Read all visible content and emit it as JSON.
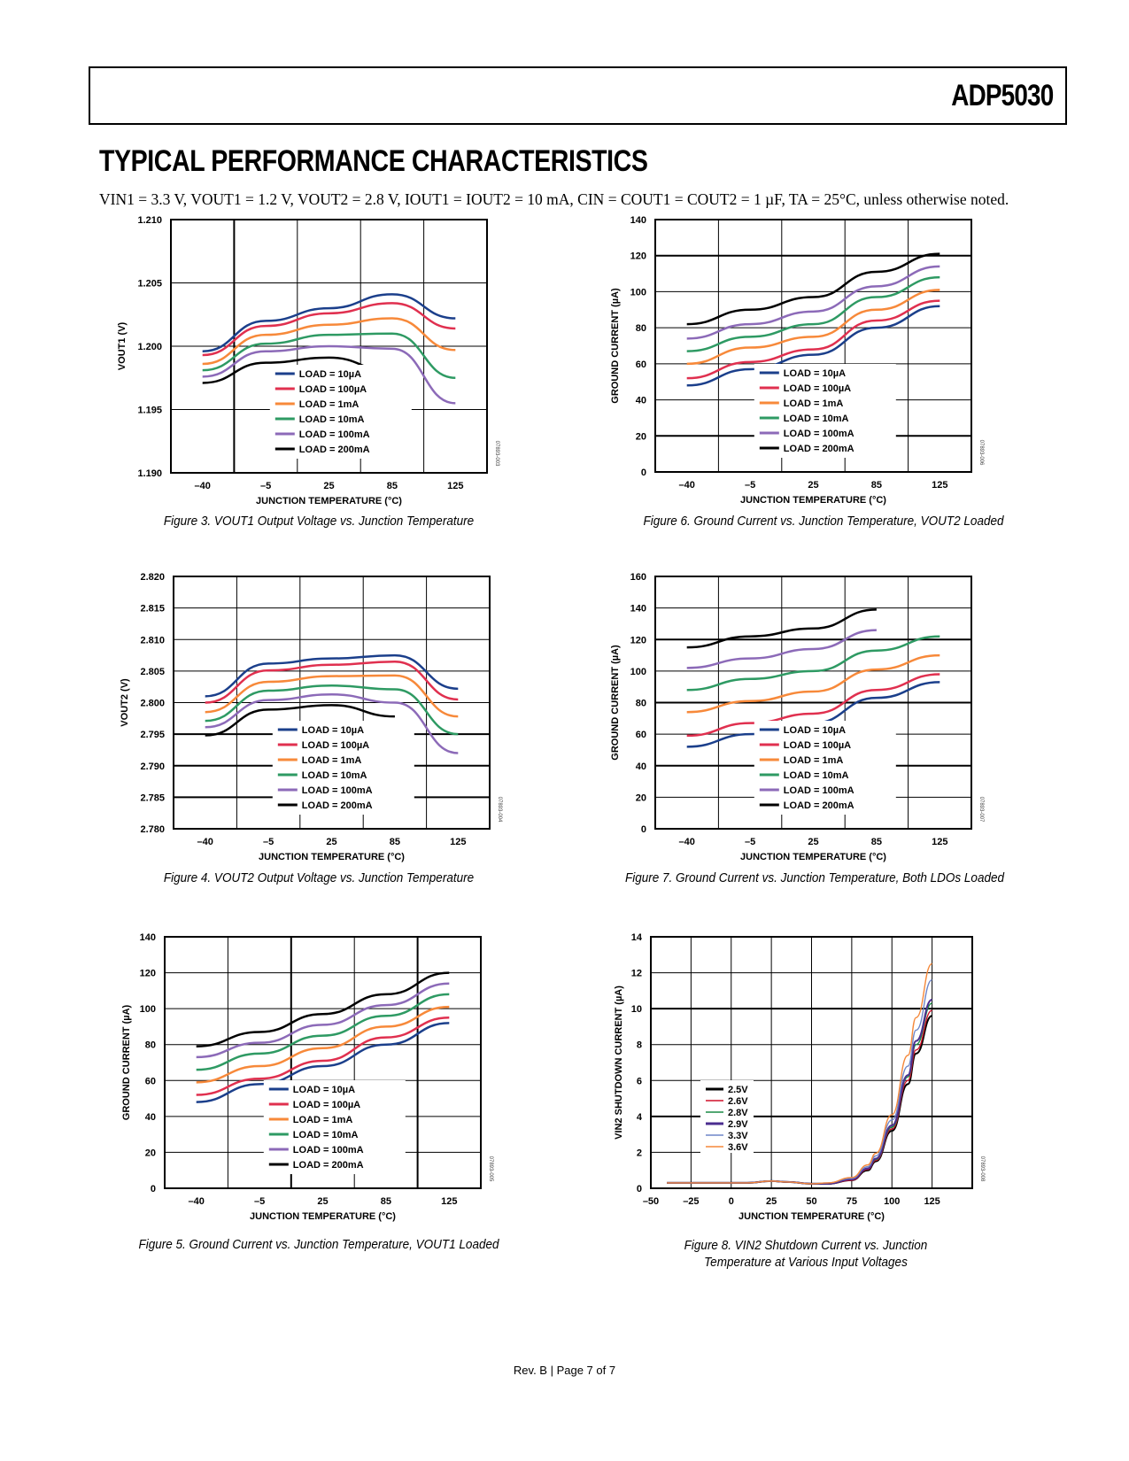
{
  "header": {
    "part_number": "ADP5030"
  },
  "section_title": "TYPICAL PERFORMANCE CHARACTERISTICS",
  "conditions": "VIN1 = 3.3 V, VOUT1 = 1.2 V, VOUT2 = 2.8 V, IOUT1 = IOUT2 = 10 mA, CIN = COUT1 = COUT2 = 1 µF, TA = 25°C, unless otherwise noted.",
  "footer": "Rev. B | Page 7 of 7",
  "chart_data": [
    {
      "id": "fig3",
      "type": "line",
      "caption": "Figure 3. VOUT1 Output Voltage vs. Junction Temperature",
      "xlabel": "JUNCTION TEMPERATURE (°C)",
      "ylabel": "VOUT1 (V)",
      "x_ticks": [
        "–40",
        "–5",
        "25",
        "85",
        "125"
      ],
      "y_ticks": [
        "1.190",
        "1.195",
        "1.200",
        "1.205",
        "1.210"
      ],
      "ylim": [
        1.19,
        1.21
      ],
      "grid": true,
      "legend": "bottom-center",
      "side_id": "07893-003",
      "x": [
        -40,
        -5,
        25,
        85,
        125
      ],
      "series": [
        {
          "name": "LOAD = 10µA",
          "color": "#1b3f8b",
          "values": [
            1.1996,
            1.202,
            1.203,
            1.2041,
            1.2022
          ]
        },
        {
          "name": "LOAD = 100µA",
          "color": "#e0304f",
          "values": [
            1.1993,
            1.2016,
            1.2026,
            1.2034,
            1.2014
          ]
        },
        {
          "name": "LOAD = 1mA",
          "color": "#f7893a",
          "values": [
            1.1986,
            1.2009,
            1.2017,
            1.2022,
            1.1997
          ]
        },
        {
          "name": "LOAD = 10mA",
          "color": "#2e9a63",
          "values": [
            1.1981,
            1.2002,
            1.2009,
            1.201,
            1.1975
          ]
        },
        {
          "name": "LOAD = 100mA",
          "color": "#8c6ab8",
          "values": [
            1.1976,
            1.1996,
            1.2,
            1.1998,
            1.1955
          ]
        },
        {
          "name": "LOAD = 200mA",
          "color": "#000000",
          "values": [
            1.1971,
            1.1987,
            1.1991,
            1.198,
            null
          ]
        }
      ]
    },
    {
      "id": "fig6",
      "type": "line",
      "caption": "Figure 6. Ground Current vs. Junction Temperature, VOUT2 Loaded",
      "xlabel": "JUNCTION TEMPERATURE (°C)",
      "ylabel": "GROUND CURRENT (µA)",
      "x_ticks": [
        "–40",
        "–5",
        "25",
        "85",
        "125"
      ],
      "y_ticks": [
        "0",
        "20",
        "40",
        "60",
        "80",
        "100",
        "120",
        "140"
      ],
      "ylim": [
        0,
        140
      ],
      "grid": true,
      "legend": "bottom-center",
      "side_id": "07893-006",
      "x": [
        -40,
        -5,
        25,
        85,
        125
      ],
      "series": [
        {
          "name": "LOAD = 10µA",
          "color": "#1b3f8b",
          "values": [
            48,
            57,
            65,
            80,
            92
          ]
        },
        {
          "name": "LOAD = 100µA",
          "color": "#e0304f",
          "values": [
            52,
            61,
            68,
            84,
            95
          ]
        },
        {
          "name": "LOAD = 1mA",
          "color": "#f7893a",
          "values": [
            60,
            69,
            75,
            90,
            101
          ]
        },
        {
          "name": "LOAD = 10mA",
          "color": "#2e9a63",
          "values": [
            67,
            75,
            82,
            97,
            108
          ]
        },
        {
          "name": "LOAD = 100mA",
          "color": "#8c6ab8",
          "values": [
            74,
            82,
            89,
            103,
            114
          ]
        },
        {
          "name": "LOAD = 200mA",
          "color": "#000000",
          "values": [
            82,
            90,
            97,
            111,
            121
          ]
        }
      ]
    },
    {
      "id": "fig4",
      "type": "line",
      "caption": "Figure 4. VOUT2 Output Voltage vs. Junction Temperature",
      "xlabel": "JUNCTION TEMPERATURE (°C)",
      "ylabel": "VOUT2 (V)",
      "x_ticks": [
        "–40",
        "–5",
        "25",
        "85",
        "125"
      ],
      "y_ticks": [
        "2.780",
        "2.785",
        "2.790",
        "2.795",
        "2.800",
        "2.805",
        "2.810",
        "2.815",
        "2.820"
      ],
      "ylim": [
        2.78,
        2.82
      ],
      "grid": true,
      "legend": "bottom-center",
      "side_id": "07893-004",
      "x": [
        -40,
        -5,
        25,
        85,
        125
      ],
      "series": [
        {
          "name": "LOAD = 10µA",
          "color": "#1b3f8b",
          "values": [
            2.801,
            2.8062,
            2.807,
            2.8075,
            2.8022
          ]
        },
        {
          "name": "LOAD = 100µA",
          "color": "#e0304f",
          "values": [
            2.8,
            2.8051,
            2.806,
            2.8065,
            2.8005
          ]
        },
        {
          "name": "LOAD = 1mA",
          "color": "#f7893a",
          "values": [
            2.7985,
            2.8033,
            2.8042,
            2.8043,
            2.7978
          ]
        },
        {
          "name": "LOAD = 10mA",
          "color": "#2e9a63",
          "values": [
            2.7971,
            2.8019,
            2.8027,
            2.8021,
            2.795
          ]
        },
        {
          "name": "LOAD = 100mA",
          "color": "#8c6ab8",
          "values": [
            2.7961,
            2.8004,
            2.8013,
            2.8,
            2.792
          ]
        },
        {
          "name": "LOAD = 200mA",
          "color": "#000000",
          "values": [
            2.7948,
            2.7989,
            2.7996,
            2.7978,
            null
          ]
        }
      ]
    },
    {
      "id": "fig7",
      "type": "line",
      "caption": "Figure 7. Ground Current vs. Junction Temperature, Both LDOs Loaded",
      "xlabel": "JUNCTION TEMPERATURE (°C)",
      "ylabel": "GROUND CURRENT (µA)",
      "x_ticks": [
        "–40",
        "–5",
        "25",
        "85",
        "125"
      ],
      "y_ticks": [
        "0",
        "20",
        "40",
        "60",
        "80",
        "100",
        "120",
        "140",
        "160"
      ],
      "ylim": [
        0,
        160
      ],
      "grid": true,
      "legend": "bottom-center",
      "side_id": "07893-007",
      "x": [
        -40,
        -5,
        25,
        85,
        125
      ],
      "series": [
        {
          "name": "LOAD = 10µA",
          "color": "#1b3f8b",
          "values": [
            52,
            60,
            67,
            83,
            93
          ]
        },
        {
          "name": "LOAD = 100µA",
          "color": "#e0304f",
          "values": [
            59,
            67,
            73,
            88,
            98
          ]
        },
        {
          "name": "LOAD = 1mA",
          "color": "#f7893a",
          "values": [
            74,
            81,
            87,
            101,
            110
          ]
        },
        {
          "name": "LOAD = 10mA",
          "color": "#2e9a63",
          "values": [
            88,
            95,
            100,
            113,
            122
          ]
        },
        {
          "name": "LOAD = 100mA",
          "color": "#8c6ab8",
          "values": [
            102,
            108,
            114,
            126,
            null
          ]
        },
        {
          "name": "LOAD = 200mA",
          "color": "#000000",
          "values": [
            115,
            122,
            127,
            139,
            null
          ]
        }
      ]
    },
    {
      "id": "fig5",
      "type": "line",
      "caption": "Figure 5. Ground Current vs. Junction Temperature, VOUT1 Loaded",
      "xlabel": "JUNCTION TEMPERATURE (°C)",
      "ylabel": "GROUND CURRENT (µA)",
      "x_ticks": [
        "–40",
        "–5",
        "25",
        "85",
        "125"
      ],
      "y_ticks": [
        "0",
        "20",
        "40",
        "60",
        "80",
        "100",
        "120",
        "140"
      ],
      "ylim": [
        0,
        140
      ],
      "grid": true,
      "legend": "bottom-center",
      "side_id": "07893-005",
      "x": [
        -40,
        -5,
        25,
        85,
        125
      ],
      "series": [
        {
          "name": "LOAD = 10µA",
          "color": "#1b3f8b",
          "values": [
            48,
            58,
            68,
            80,
            92
          ]
        },
        {
          "name": "LOAD = 100µA",
          "color": "#e0304f",
          "values": [
            52,
            61,
            71,
            84,
            95
          ]
        },
        {
          "name": "LOAD = 1mA",
          "color": "#f7893a",
          "values": [
            59,
            68,
            78,
            90,
            101
          ]
        },
        {
          "name": "LOAD = 10mA",
          "color": "#2e9a63",
          "values": [
            66,
            75,
            85,
            96,
            108
          ]
        },
        {
          "name": "LOAD = 100mA",
          "color": "#8c6ab8",
          "values": [
            73,
            81,
            91,
            102,
            114
          ]
        },
        {
          "name": "LOAD = 200mA",
          "color": "#000000",
          "values": [
            79,
            87,
            97,
            108,
            120
          ]
        }
      ]
    },
    {
      "id": "fig8",
      "type": "line",
      "caption": "Figure 8. VIN2 Shutdown Current vs. Junction Temperature at Various Input Voltages",
      "xlabel": "JUNCTION TEMPERATURE (°C)",
      "ylabel": "VIN2 SHUTDOWN CURRENT (µA)",
      "x_ticks": [
        "–50",
        "–25",
        "0",
        "25",
        "50",
        "75",
        "100",
        "125"
      ],
      "y_ticks": [
        "0",
        "2",
        "4",
        "6",
        "8",
        "10",
        "12",
        "14"
      ],
      "xlim": [
        -50,
        150
      ],
      "ylim": [
        0,
        14
      ],
      "grid": true,
      "legend": "left-middle",
      "side_id": "07893-008",
      "x": [
        -40,
        -25,
        0,
        10,
        25,
        35,
        50,
        60,
        75,
        85,
        90,
        100,
        110,
        115,
        125
      ],
      "series": [
        {
          "name": "2.5V",
          "color": "#000000",
          "values": [
            0.3,
            0.3,
            0.3,
            0.3,
            0.4,
            0.35,
            0.25,
            0.25,
            0.45,
            1.0,
            1.5,
            3.2,
            5.8,
            7.5,
            9.6
          ]
        },
        {
          "name": "2.6V",
          "color": "#d0102a",
          "values": [
            0.3,
            0.3,
            0.3,
            0.3,
            0.4,
            0.35,
            0.25,
            0.25,
            0.45,
            1.05,
            1.55,
            3.3,
            6.0,
            7.7,
            9.9
          ]
        },
        {
          "name": "2.8V",
          "color": "#1a8a45",
          "values": [
            0.3,
            0.3,
            0.3,
            0.3,
            0.4,
            0.35,
            0.25,
            0.25,
            0.5,
            1.1,
            1.6,
            3.4,
            6.2,
            8.0,
            10.3
          ]
        },
        {
          "name": "2.9V",
          "color": "#4b2d8f",
          "values": [
            0.3,
            0.3,
            0.3,
            0.3,
            0.4,
            0.35,
            0.25,
            0.25,
            0.5,
            1.1,
            1.65,
            3.5,
            6.3,
            8.2,
            10.5
          ]
        },
        {
          "name": "3.3V",
          "color": "#6f86c8",
          "values": [
            0.3,
            0.3,
            0.3,
            0.3,
            0.4,
            0.35,
            0.25,
            0.3,
            0.55,
            1.2,
            1.8,
            3.8,
            6.8,
            8.8,
            11.6
          ]
        },
        {
          "name": "3.6V",
          "color": "#f5883a",
          "values": [
            0.3,
            0.3,
            0.3,
            0.3,
            0.4,
            0.35,
            0.25,
            0.3,
            0.6,
            1.3,
            1.95,
            4.1,
            7.4,
            9.5,
            12.5
          ]
        }
      ]
    }
  ]
}
